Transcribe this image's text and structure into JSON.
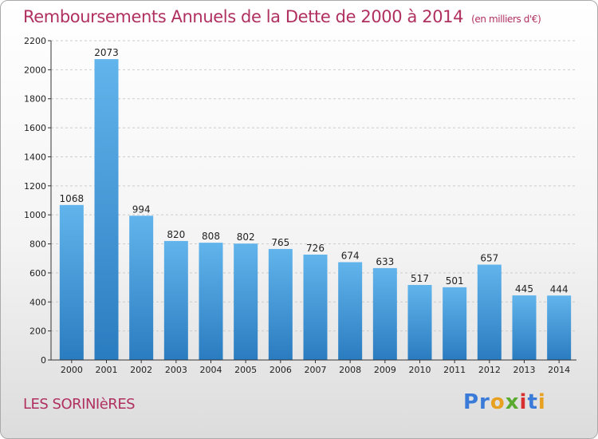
{
  "title": "Remboursements Annuels de la Dette de 2000 à 2014",
  "unit": "(en milliers d'€)",
  "city": "LES SORINIèRES",
  "logo": {
    "p1": "Pr",
    "p2": "o",
    "p3": "x",
    "p4": "i",
    "p5": "t",
    "p6": "i"
  },
  "colors": {
    "title": "#b03060",
    "bar_light": "#62b4ec",
    "bar_dark": "#2a7cc0",
    "grid": "#cccccc"
  },
  "chart_data": {
    "type": "bar",
    "categories": [
      "2000",
      "2001",
      "2002",
      "2003",
      "2004",
      "2005",
      "2006",
      "2007",
      "2008",
      "2009",
      "2010",
      "2011",
      "2012",
      "2013",
      "2014"
    ],
    "values": [
      1068,
      2073,
      994,
      820,
      808,
      802,
      765,
      726,
      674,
      633,
      517,
      501,
      657,
      445,
      444
    ],
    "title": "Remboursements Annuels de la Dette de 2000 à 2014",
    "xlabel": "",
    "ylabel": "",
    "ylim": [
      0,
      2200
    ],
    "yticks": [
      0,
      200,
      400,
      600,
      800,
      1000,
      1200,
      1400,
      1600,
      1800,
      2000,
      2200
    ],
    "grid": true,
    "legend": "none"
  }
}
